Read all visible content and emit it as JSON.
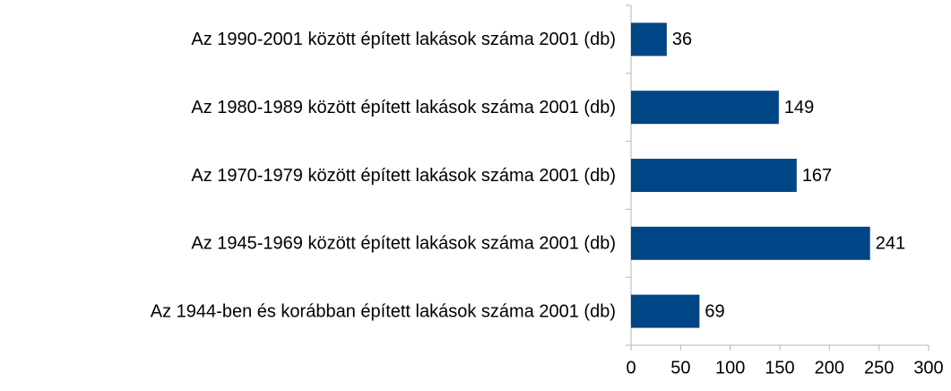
{
  "chart_data": {
    "type": "hbar",
    "categories": [
      "Az 1990-2001 között épített lakások száma 2001 (db)",
      "Az 1980-1989 között épített lakások száma 2001 (db)",
      "Az 1970-1979 között épített lakások száma 2001 (db)",
      "Az 1945-1969 között épített lakások száma 2001 (db)",
      "Az 1944-ben és korábban épített lakások száma 2001 (db)"
    ],
    "values": [
      36,
      149,
      167,
      241,
      69
    ],
    "color": "#004586",
    "xlim": [
      0,
      300
    ],
    "xticks": [
      0,
      50,
      100,
      150,
      200,
      250,
      300
    ],
    "grid": false
  }
}
